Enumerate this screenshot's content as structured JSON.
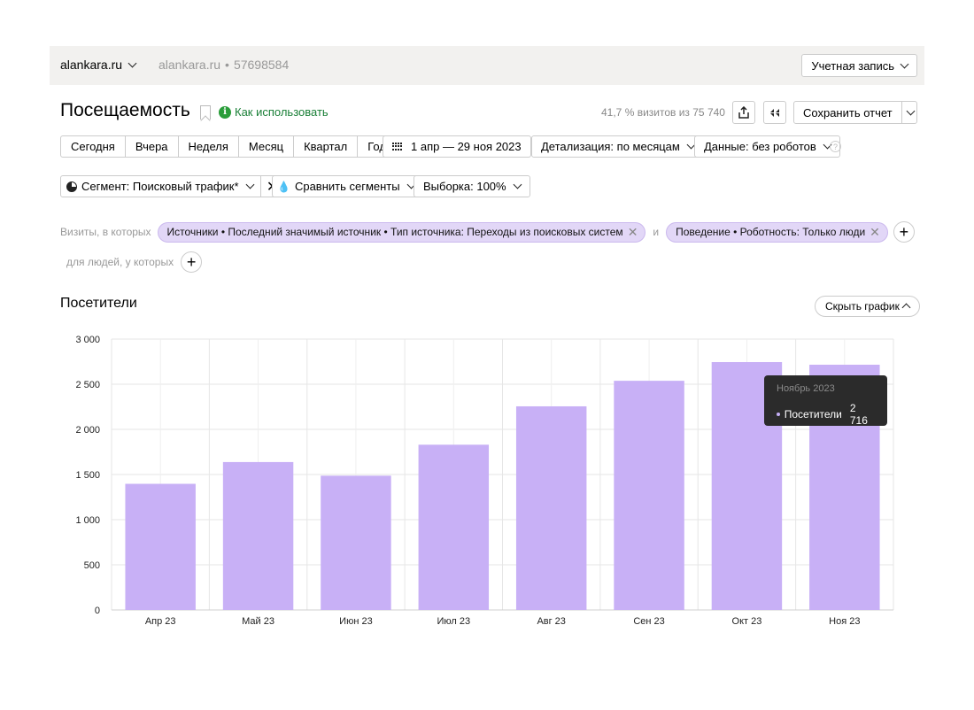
{
  "topbar": {
    "counter_select": "alankara.ru",
    "counter_name": "alankara.ru",
    "counter_id": "57698584",
    "account_button": "Учетная запись"
  },
  "header": {
    "title": "Посещаемость",
    "how_to_use": "Как использовать",
    "sample_stat": "41,7 % визитов из 75 740",
    "save_report": "Сохранить отчет"
  },
  "periods": [
    "Сегодня",
    "Вчера",
    "Неделя",
    "Месяц",
    "Квартал",
    "Год"
  ],
  "date_range": "1 апр — 29 ноя 2023",
  "detail_select": "Детализация: по месяцам",
  "data_select": "Данные: без роботов",
  "segment_select": "Сегмент: Поисковый трафик*",
  "compare_segments": "Сравнить сегменты",
  "sample_select": "Выборка: 100%",
  "filters": {
    "visits_prefix": "Визиты, в которых",
    "chip1": "Источники • Последний значимый источник • Тип источника: Переходы из поисковых систем",
    "conjunction": "и",
    "chip2": "Поведение • Роботность: Только люди",
    "people_prefix": "для людей, у которых"
  },
  "chart_section": {
    "title": "Посетители",
    "hide_chart": "Скрыть график"
  },
  "tooltip": {
    "title": "Ноябрь 2023",
    "series": "Посетители",
    "value": "2 716"
  },
  "colors": {
    "bar": "#c8b0f6",
    "chip_bg": "#e2d7f7",
    "link_green": "#1a7f37",
    "tooltip_bg": "#2b2b2b"
  },
  "chart_data": {
    "type": "bar",
    "categories": [
      "Апр 23",
      "Май 23",
      "Июн 23",
      "Июл 23",
      "Авг 23",
      "Сен 23",
      "Окт 23",
      "Ноя 23"
    ],
    "series": [
      {
        "name": "Посетители",
        "values": [
          1397,
          1638,
          1487,
          1830,
          2255,
          2538,
          2745,
          2716
        ]
      }
    ],
    "ylim": [
      0,
      3000
    ],
    "yticks": [
      0,
      500,
      1000,
      1500,
      2000,
      2500,
      3000
    ],
    "ytick_labels": [
      "0",
      "500",
      "1 000",
      "1 500",
      "2 000",
      "2 500",
      "3 000"
    ],
    "grid": true
  }
}
